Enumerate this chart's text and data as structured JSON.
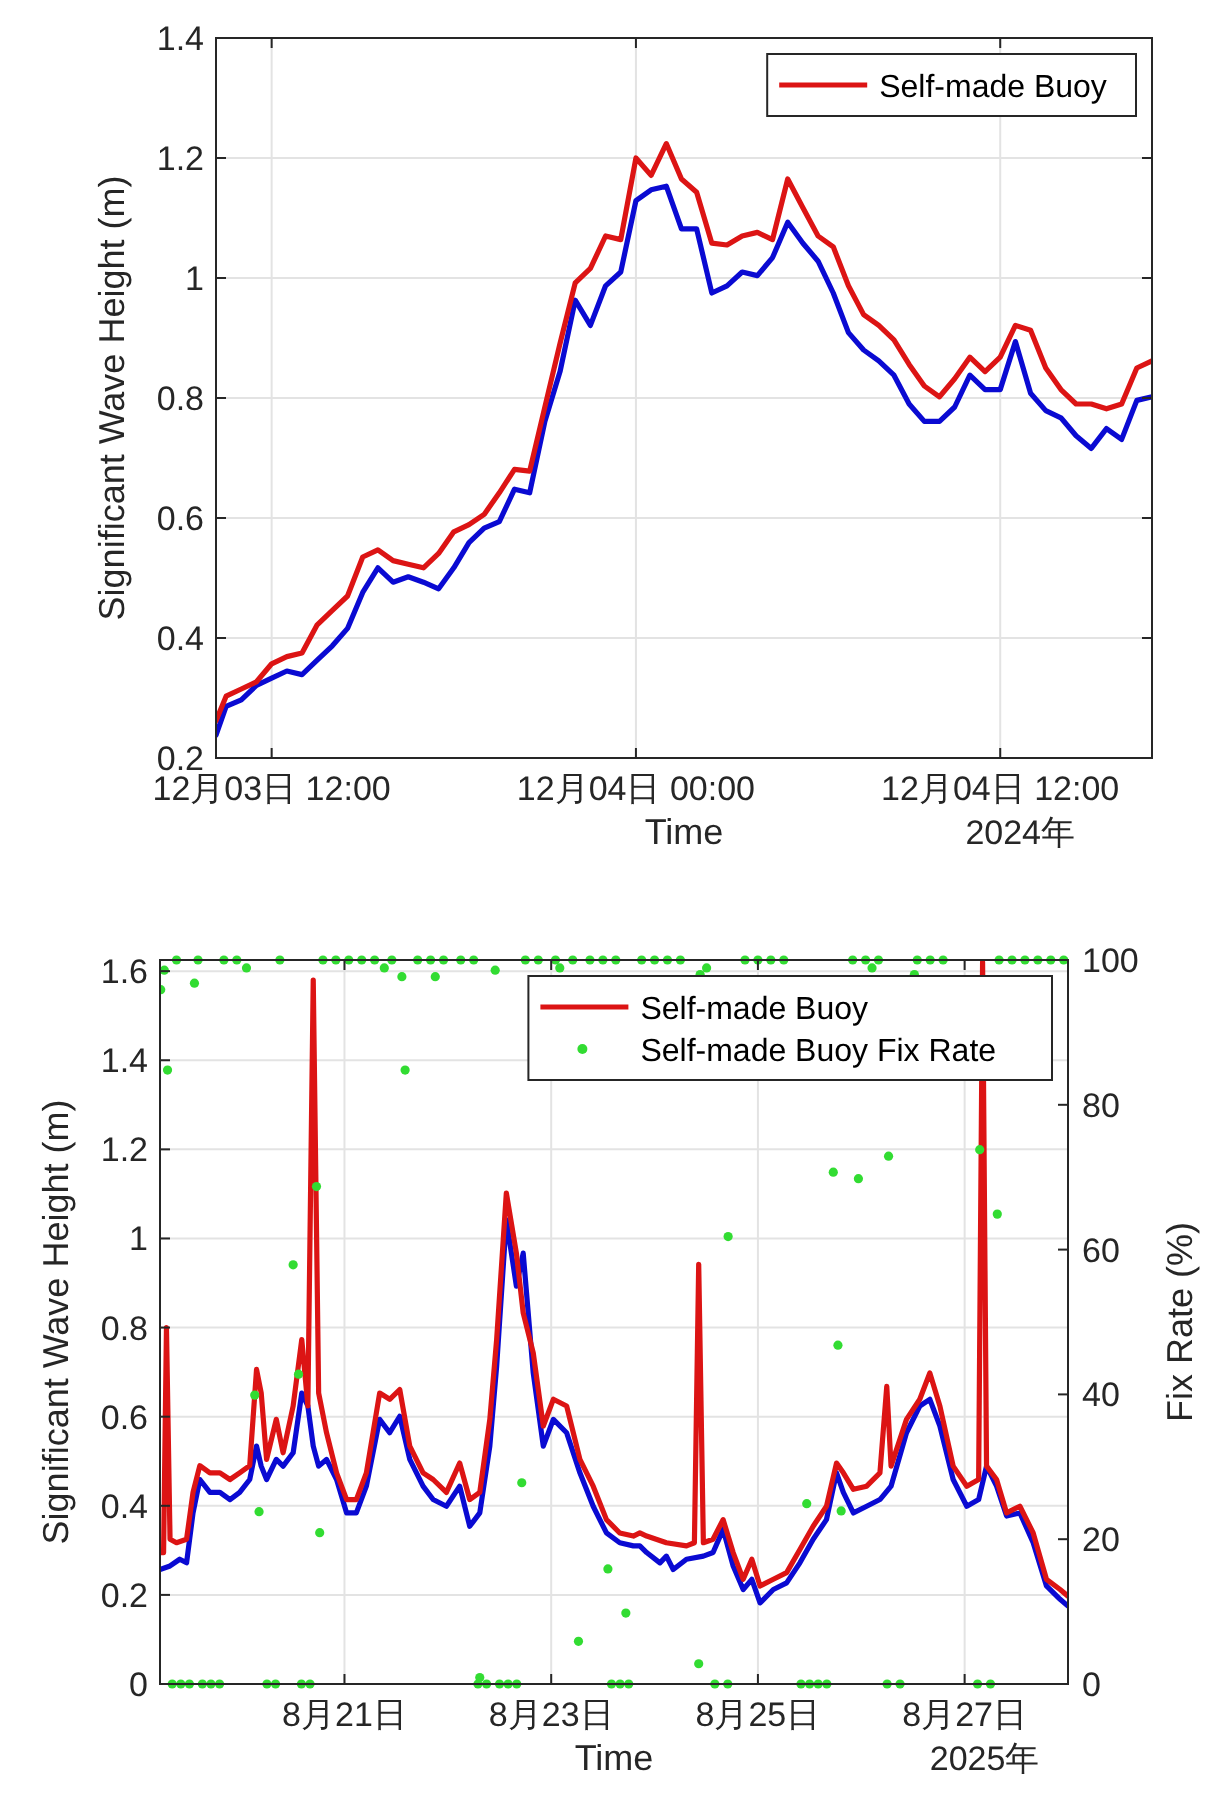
{
  "chart_data": [
    {
      "type": "line",
      "xlabel": "Time",
      "ylabel": "Significant Wave Height (m)",
      "xlim": [
        "2024-12-03T10:10",
        "2024-12-04T17:00"
      ],
      "ylim": [
        0.2,
        1.4
      ],
      "yticks": [
        0.2,
        0.4,
        0.6,
        0.8,
        1,
        1.2,
        1.4
      ],
      "xticks": [
        {
          "value": "2024-12-03T12:00",
          "label": "12月03日  12:00"
        },
        {
          "value": "2024-12-04T00:00",
          "label": "12月04日  00:00"
        },
        {
          "value": "2024-12-04T12:00",
          "label": "12月04日  12:00"
        }
      ],
      "grid": true,
      "legend": "top right",
      "annotations": [
        "2024年"
      ],
      "x": [
        "2024-12-03T10:10",
        "2024-12-03T10:30",
        "2024-12-03T11:00",
        "2024-12-03T11:30",
        "2024-12-03T12:00",
        "2024-12-03T12:30",
        "2024-12-03T13:00",
        "2024-12-03T13:30",
        "2024-12-03T14:00",
        "2024-12-03T14:30",
        "2024-12-03T15:00",
        "2024-12-03T15:30",
        "2024-12-03T16:00",
        "2024-12-03T16:30",
        "2024-12-03T17:00",
        "2024-12-03T17:30",
        "2024-12-03T18:00",
        "2024-12-03T18:30",
        "2024-12-03T19:00",
        "2024-12-03T19:30",
        "2024-12-03T20:00",
        "2024-12-03T20:30",
        "2024-12-03T21:00",
        "2024-12-03T21:30",
        "2024-12-03T22:00",
        "2024-12-03T22:30",
        "2024-12-03T23:00",
        "2024-12-03T23:30",
        "2024-12-04T00:00",
        "2024-12-04T00:30",
        "2024-12-04T01:00",
        "2024-12-04T01:30",
        "2024-12-04T02:00",
        "2024-12-04T02:30",
        "2024-12-04T03:00",
        "2024-12-04T03:30",
        "2024-12-04T04:00",
        "2024-12-04T04:30",
        "2024-12-04T05:00",
        "2024-12-04T05:30",
        "2024-12-04T06:00",
        "2024-12-04T06:30",
        "2024-12-04T07:00",
        "2024-12-04T07:30",
        "2024-12-04T08:00",
        "2024-12-04T08:30",
        "2024-12-04T09:00",
        "2024-12-04T09:30",
        "2024-12-04T10:00",
        "2024-12-04T10:30",
        "2024-12-04T11:00",
        "2024-12-04T11:30",
        "2024-12-04T12:00",
        "2024-12-04T12:30",
        "2024-12-04T13:00",
        "2024-12-04T13:30",
        "2024-12-04T14:00",
        "2024-12-04T14:30",
        "2024-12-04T15:00",
        "2024-12-04T15:30",
        "2024-12-04T16:00",
        "2024-12-04T16:30",
        "2024-12-04T17:00"
      ],
      "series": [
        {
          "color": "#0a0ad2",
          "values": [
            0.238,
            0.286,
            0.297,
            0.321,
            0.333,
            0.345,
            0.339,
            0.363,
            0.387,
            0.416,
            0.476,
            0.517,
            0.493,
            0.502,
            0.493,
            0.482,
            0.517,
            0.559,
            0.583,
            0.594,
            0.648,
            0.642,
            0.761,
            0.844,
            0.963,
            0.921,
            0.987,
            1.01,
            1.129,
            1.147,
            1.153,
            1.082,
            1.082,
            0.975,
            0.987,
            1.01,
            1.004,
            1.034,
            1.093,
            1.058,
            1.028,
            0.975,
            0.909,
            0.88,
            0.862,
            0.838,
            0.79,
            0.761,
            0.761,
            0.785,
            0.838,
            0.814,
            0.814,
            0.894,
            0.808,
            0.779,
            0.767,
            0.737,
            0.716,
            0.749,
            0.731,
            0.796,
            0.802
          ]
        },
        {
          "name": "Self-made Buoy",
          "color": "#dc1414",
          "values": [
            0.262,
            0.303,
            0.315,
            0.327,
            0.357,
            0.369,
            0.375,
            0.422,
            0.446,
            0.47,
            0.535,
            0.547,
            0.529,
            0.523,
            0.517,
            0.541,
            0.577,
            0.589,
            0.606,
            0.642,
            0.681,
            0.678,
            0.785,
            0.891,
            0.992,
            1.016,
            1.07,
            1.064,
            1.2,
            1.171,
            1.224,
            1.165,
            1.143,
            1.058,
            1.055,
            1.07,
            1.076,
            1.064,
            1.165,
            1.117,
            1.07,
            1.052,
            0.987,
            0.939,
            0.921,
            0.897,
            0.856,
            0.82,
            0.802,
            0.832,
            0.868,
            0.844,
            0.868,
            0.921,
            0.913,
            0.85,
            0.814,
            0.79,
            0.79,
            0.782,
            0.79,
            0.85,
            0.862
          ]
        }
      ]
    },
    {
      "type": "line",
      "xlabel": "Time",
      "ylabel": "Significant Wave Height (m)",
      "y2label": "Fix Rate (%)",
      "xlim": [
        "2025-08-19T05:10",
        "2025-08-28T00:00"
      ],
      "ylim": [
        0,
        1.625
      ],
      "yticks": [
        0,
        0.2,
        0.4,
        0.6,
        0.8,
        1,
        1.2,
        1.4,
        1.6
      ],
      "y2lim": [
        0,
        100
      ],
      "y2ticks": [
        0,
        20,
        40,
        60,
        80,
        100
      ],
      "xticks": [
        {
          "value": "2025-08-21T00:00",
          "label": "8月21日"
        },
        {
          "value": "2025-08-23T00:00",
          "label": "8月23日"
        },
        {
          "value": "2025-08-25T00:00",
          "label": "8月25日"
        },
        {
          "value": "2025-08-27T00:00",
          "label": "8月27日"
        }
      ],
      "grid": true,
      "legend": "top right",
      "annotations": [
        "2025年"
      ],
      "series": [
        {
          "color": "#0a0ad2",
          "x": [
            "2025-08-19T05:10",
            "2025-08-19T07:30",
            "2025-08-19T09:45",
            "2025-08-19T11:20",
            "2025-08-19T12:50",
            "2025-08-19T14:25",
            "2025-08-19T16:45",
            "2025-08-19T19:05",
            "2025-08-19T21:25",
            "2025-08-19T23:40",
            "2025-08-20T02:00",
            "2025-08-20T03:35",
            "2025-08-20T04:40",
            "2025-08-20T05:55",
            "2025-08-20T08:10",
            "2025-08-20T09:45",
            "2025-08-20T12:05",
            "2025-08-20T14:05",
            "2025-08-20T15:30",
            "2025-08-20T16:45",
            "2025-08-20T18:00",
            "2025-08-20T19:50",
            "2025-08-20T22:10",
            "2025-08-21T00:30",
            "2025-08-21T02:45",
            "2025-08-21T05:05",
            "2025-08-21T08:10",
            "2025-08-21T10:30",
            "2025-08-21T12:50",
            "2025-08-21T15:10",
            "2025-08-21T18:15",
            "2025-08-21T20:35",
            "2025-08-21T23:40",
            "2025-08-22T02:45",
            "2025-08-22T05:05",
            "2025-08-22T07:25",
            "2025-08-22T09:45",
            "2025-08-22T11:20",
            "2025-08-22T13:35",
            "2025-08-22T15:55",
            "2025-08-22T17:30",
            "2025-08-22T19:50",
            "2025-08-22T22:10",
            "2025-08-23T00:30",
            "2025-08-23T03:35",
            "2025-08-23T06:40",
            "2025-08-23T09:45",
            "2025-08-23T12:50",
            "2025-08-23T15:55",
            "2025-08-23T19:05",
            "2025-08-23T20:35",
            "2025-08-23T22:10",
            "2025-08-24T01:15",
            "2025-08-24T02:45",
            "2025-08-24T04:20",
            "2025-08-24T07:25",
            "2025-08-24T11:20",
            "2025-08-24T13:35",
            "2025-08-24T15:55",
            "2025-08-24T18:15",
            "2025-08-24T20:35",
            "2025-08-24T22:35",
            "2025-08-25T00:30",
            "2025-08-25T03:35",
            "2025-08-25T06:40",
            "2025-08-25T09:45",
            "2025-08-25T12:50",
            "2025-08-25T15:55",
            "2025-08-25T18:15",
            "2025-08-25T19:50",
            "2025-08-25T22:10",
            "2025-08-26T01:15",
            "2025-08-26T04:20",
            "2025-08-26T06:55",
            "2025-08-26T10:30",
            "2025-08-26T13:35",
            "2025-08-26T15:55",
            "2025-08-26T18:15",
            "2025-08-26T21:20",
            "2025-08-27T00:30",
            "2025-08-27T03:15",
            "2025-08-27T05:05",
            "2025-08-27T07:25",
            "2025-08-27T09:45",
            "2025-08-27T12:50",
            "2025-08-27T15:55",
            "2025-08-27T19:00",
            "2025-08-27T22:10",
            "2025-08-28T00:00"
          ],
          "values": [
            0.257,
            0.265,
            0.28,
            0.272,
            0.384,
            0.459,
            0.43,
            0.43,
            0.414,
            0.43,
            0.459,
            0.534,
            0.489,
            0.459,
            0.504,
            0.489,
            0.519,
            0.653,
            0.624,
            0.534,
            0.489,
            0.504,
            0.459,
            0.384,
            0.384,
            0.444,
            0.594,
            0.564,
            0.601,
            0.504,
            0.444,
            0.414,
            0.399,
            0.444,
            0.354,
            0.384,
            0.534,
            0.713,
            1.042,
            0.893,
            0.967,
            0.698,
            0.534,
            0.594,
            0.564,
            0.474,
            0.399,
            0.339,
            0.317,
            0.31,
            0.31,
            0.295,
            0.272,
            0.287,
            0.257,
            0.28,
            0.287,
            0.295,
            0.347,
            0.265,
            0.212,
            0.235,
            0.182,
            0.212,
            0.227,
            0.272,
            0.325,
            0.369,
            0.474,
            0.43,
            0.384,
            0.399,
            0.414,
            0.444,
            0.564,
            0.624,
            0.639,
            0.579,
            0.459,
            0.399,
            0.414,
            0.489,
            0.444,
            0.377,
            0.384,
            0.317,
            0.22,
            0.19,
            0.175
          ]
        },
        {
          "name": "Self-made Buoy",
          "color": "#dc1414",
          "x": [
            "2025-08-19T05:10",
            "2025-08-19T06:00",
            "2025-08-19T06:40",
            "2025-08-19T07:30",
            "2025-08-19T09:00",
            "2025-08-19T11:20",
            "2025-08-19T12:50",
            "2025-08-19T14:25",
            "2025-08-19T16:45",
            "2025-08-19T19:05",
            "2025-08-19T21:25",
            "2025-08-19T23:40",
            "2025-08-20T02:00",
            "2025-08-20T03:35",
            "2025-08-20T04:40",
            "2025-08-20T05:55",
            "2025-08-20T08:10",
            "2025-08-20T09:45",
            "2025-08-20T12:05",
            "2025-08-20T14:05",
            "2025-08-20T15:30",
            "2025-08-20T16:45",
            "2025-08-20T18:00",
            "2025-08-20T19:50",
            "2025-08-20T22:10",
            "2025-08-21T00:30",
            "2025-08-21T02:45",
            "2025-08-21T05:05",
            "2025-08-21T08:10",
            "2025-08-21T10:30",
            "2025-08-21T12:50",
            "2025-08-21T15:10",
            "2025-08-21T18:15",
            "2025-08-21T20:35",
            "2025-08-21T23:40",
            "2025-08-22T02:45",
            "2025-08-22T05:05",
            "2025-08-22T07:25",
            "2025-08-22T09:45",
            "2025-08-22T11:20",
            "2025-08-22T13:35",
            "2025-08-22T15:55",
            "2025-08-22T17:30",
            "2025-08-22T19:50",
            "2025-08-22T22:10",
            "2025-08-23T00:30",
            "2025-08-23T03:35",
            "2025-08-23T06:40",
            "2025-08-23T09:45",
            "2025-08-23T12:50",
            "2025-08-23T15:55",
            "2025-08-23T19:05",
            "2025-08-23T20:35",
            "2025-08-23T22:10",
            "2025-08-24T02:45",
            "2025-08-24T07:25",
            "2025-08-24T09:15",
            "2025-08-24T10:15",
            "2025-08-24T11:20",
            "2025-08-24T13:35",
            "2025-08-24T15:55",
            "2025-08-24T18:15",
            "2025-08-24T20:35",
            "2025-08-24T22:35",
            "2025-08-25T00:30",
            "2025-08-25T03:35",
            "2025-08-25T06:40",
            "2025-08-25T09:45",
            "2025-08-25T12:50",
            "2025-08-25T15:55",
            "2025-08-25T18:15",
            "2025-08-25T19:50",
            "2025-08-25T22:10",
            "2025-08-26T01:15",
            "2025-08-26T04:20",
            "2025-08-26T05:55",
            "2025-08-26T06:55",
            "2025-08-26T10:30",
            "2025-08-26T13:35",
            "2025-08-26T15:55",
            "2025-08-26T18:15",
            "2025-08-26T21:20",
            "2025-08-27T00:30",
            "2025-08-27T03:15",
            "2025-08-27T04:10",
            "2025-08-27T05:05",
            "2025-08-27T07:25",
            "2025-08-27T09:45",
            "2025-08-27T12:50",
            "2025-08-27T15:55",
            "2025-08-27T19:00",
            "2025-08-27T22:10",
            "2025-08-28T00:00"
          ],
          "values": [
            0.295,
            0.295,
            0.8,
            0.325,
            0.317,
            0.325,
            0.43,
            0.49,
            0.474,
            0.474,
            0.459,
            0.474,
            0.49,
            0.706,
            0.653,
            0.504,
            0.594,
            0.519,
            0.624,
            0.773,
            0.624,
            1.58,
            0.653,
            0.564,
            0.474,
            0.414,
            0.414,
            0.474,
            0.653,
            0.639,
            0.661,
            0.534,
            0.474,
            0.459,
            0.43,
            0.496,
            0.414,
            0.43,
            0.594,
            0.773,
            1.102,
            0.967,
            0.833,
            0.743,
            0.579,
            0.639,
            0.624,
            0.504,
            0.444,
            0.369,
            0.339,
            0.332,
            0.339,
            0.332,
            0.317,
            0.31,
            0.317,
            0.942,
            0.317,
            0.325,
            0.369,
            0.295,
            0.235,
            0.28,
            0.22,
            0.235,
            0.25,
            0.302,
            0.354,
            0.399,
            0.496,
            0.474,
            0.437,
            0.444,
            0.474,
            0.668,
            0.489,
            0.594,
            0.639,
            0.698,
            0.624,
            0.489,
            0.444,
            0.459,
            1.62,
            0.489,
            0.459,
            0.384,
            0.399,
            0.339,
            0.235,
            0.212,
            0.197
          ]
        },
        {
          "name": "Self-made Buoy Fix Rate",
          "type": "scatter",
          "axis": "y2",
          "marker": "circle",
          "color": "#32dc32",
          "x": [
            "2025-08-19T05:20",
            "2025-08-19T06:10",
            "2025-08-19T06:55",
            "2025-08-19T08:00",
            "2025-08-19T09:00",
            "2025-08-19T10:00",
            "2025-08-19T12:00",
            "2025-08-19T13:10",
            "2025-08-19T14:00",
            "2025-08-19T15:00",
            "2025-08-19T17:00",
            "2025-08-19T19:00",
            "2025-08-19T20:00",
            "2025-08-19T23:00",
            "2025-08-20T01:15",
            "2025-08-20T03:10",
            "2025-08-20T04:10",
            "2025-08-20T06:00",
            "2025-08-20T08:00",
            "2025-08-20T09:00",
            "2025-08-20T12:05",
            "2025-08-20T13:20",
            "2025-08-20T14:00",
            "2025-08-20T16:00",
            "2025-08-20T17:30",
            "2025-08-20T18:15",
            "2025-08-20T19:00",
            "2025-08-20T22:00",
            "2025-08-21T01:00",
            "2025-08-21T04:00",
            "2025-08-21T07:00",
            "2025-08-21T09:15",
            "2025-08-21T11:00",
            "2025-08-21T13:20",
            "2025-08-21T14:05",
            "2025-08-21T17:00",
            "2025-08-21T20:00",
            "2025-08-21T21:05",
            "2025-08-21T23:00",
            "2025-08-22T03:00",
            "2025-08-22T06:00",
            "2025-08-22T07:00",
            "2025-08-22T07:25",
            "2025-08-22T09:00",
            "2025-08-22T11:00",
            "2025-08-22T12:00",
            "2025-08-22T14:00",
            "2025-08-22T16:00",
            "2025-08-22T17:10",
            "2025-08-22T18:00",
            "2025-08-22T21:00",
            "2025-08-23T01:00",
            "2025-08-23T02:00",
            "2025-08-23T05:00",
            "2025-08-23T06:20",
            "2025-08-23T09:00",
            "2025-08-23T12:00",
            "2025-08-23T13:10",
            "2025-08-23T14:00",
            "2025-08-23T15:00",
            "2025-08-23T16:00",
            "2025-08-23T17:20",
            "2025-08-23T18:00",
            "2025-08-23T21:00",
            "2025-08-24T00:00",
            "2025-08-24T03:00",
            "2025-08-24T06:00",
            "2025-08-24T10:15",
            "2025-08-24T10:35",
            "2025-08-24T12:05",
            "2025-08-24T14:00",
            "2025-08-24T17:00",
            "2025-08-24T17:05",
            "2025-08-24T21:00",
            "2025-08-25T00:00",
            "2025-08-25T03:00",
            "2025-08-25T06:00",
            "2025-08-25T10:00",
            "2025-08-25T11:20",
            "2025-08-25T12:00",
            "2025-08-25T14:00",
            "2025-08-25T16:00",
            "2025-08-25T17:30",
            "2025-08-25T18:35",
            "2025-08-25T19:20",
            "2025-08-25T22:00",
            "2025-08-25T23:20",
            "2025-08-26T01:00",
            "2025-08-26T02:30",
            "2025-08-26T04:00",
            "2025-08-26T06:00",
            "2025-08-26T06:20",
            "2025-08-26T09:00",
            "2025-08-26T12:20",
            "2025-08-26T13:00",
            "2025-08-26T16:00",
            "2025-08-26T19:00",
            "2025-08-27T03:00",
            "2025-08-27T03:30",
            "2025-08-27T06:00",
            "2025-08-27T07:35",
            "2025-08-27T08:00",
            "2025-08-27T11:00",
            "2025-08-27T14:00",
            "2025-08-27T17:00",
            "2025-08-27T20:00",
            "2025-08-27T23:00"
          ],
          "values": [
            95.9,
            98.6,
            84.8,
            0,
            100,
            0,
            0,
            96.8,
            100,
            0,
            0,
            0,
            100,
            100,
            98.9,
            39.9,
            23.8,
            0,
            0,
            100,
            57.9,
            42.8,
            0,
            0,
            68.7,
            20.9,
            100,
            100,
            100,
            100,
            100,
            98.9,
            100,
            97.7,
            84.8,
            100,
            100,
            97.7,
            100,
            100,
            100,
            0,
            0.9,
            0,
            98.6,
            0,
            0,
            0,
            27.8,
            100,
            100,
            100,
            98.9,
            100,
            5.9,
            100,
            100,
            15.9,
            0,
            100,
            0,
            9.8,
            0,
            100,
            100,
            100,
            100,
            2.8,
            98,
            98.9,
            0,
            0,
            61.8,
            100,
            100,
            100,
            100,
            0,
            24.9,
            0,
            0,
            0,
            70.7,
            46.8,
            23.9,
            100,
            69.8,
            100,
            98.9,
            100,
            0,
            72.9,
            0,
            98,
            100,
            100,
            100,
            0,
            73.8,
            0,
            64.9,
            100,
            100,
            100,
            100,
            100,
            100
          ]
        }
      ]
    }
  ]
}
